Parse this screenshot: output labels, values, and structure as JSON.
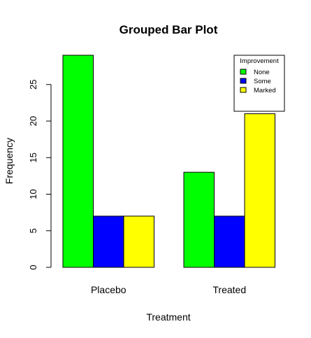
{
  "chart_data": {
    "type": "bar",
    "title": "Grouped Bar Plot",
    "xlabel": "Treatment",
    "ylabel": "Frequency",
    "categories": [
      "Placebo",
      "Treated"
    ],
    "series": [
      {
        "name": "None",
        "values": [
          29,
          13
        ],
        "color": "#00ff00"
      },
      {
        "name": "Some",
        "values": [
          7,
          7
        ],
        "color": "#0000ff"
      },
      {
        "name": "Marked",
        "values": [
          7,
          21
        ],
        "color": "#ffff00"
      }
    ],
    "legend_title": "Improvement",
    "legend_position": "top-right",
    "yticks": [
      0,
      5,
      10,
      15,
      20,
      25
    ],
    "ylim": [
      0,
      29
    ],
    "grid": false
  }
}
